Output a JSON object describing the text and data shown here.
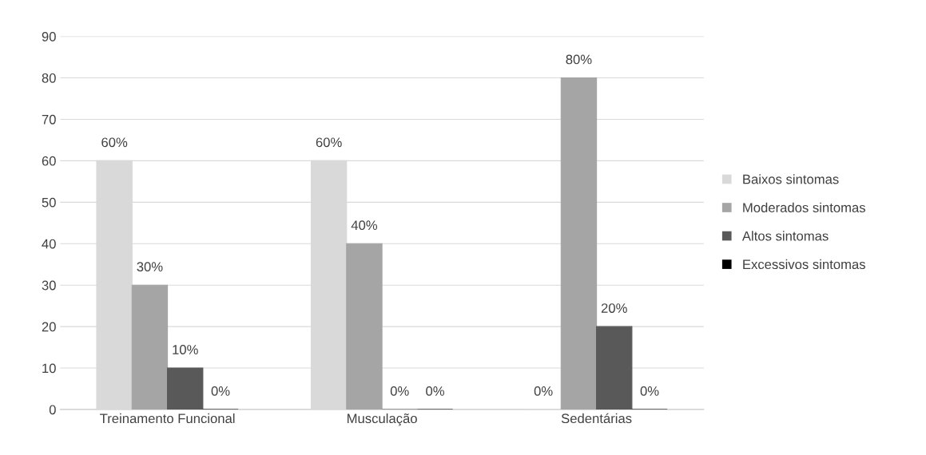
{
  "chart_data": {
    "type": "bar",
    "categories": [
      "Treinamento Funcional",
      "Musculação",
      "Sedentárias"
    ],
    "series": [
      {
        "name": "Baixos sintomas",
        "color": "#d9d9d9",
        "values": [
          60,
          60,
          0
        ],
        "value_labels": [
          "60%",
          "60%",
          "0%"
        ]
      },
      {
        "name": "Moderados sintomas",
        "color": "#a5a5a5",
        "values": [
          30,
          40,
          80
        ],
        "value_labels": [
          "30%",
          "40%",
          "80%"
        ]
      },
      {
        "name": "Altos sintomas",
        "color": "#595959",
        "values": [
          10,
          0,
          20
        ],
        "value_labels": [
          "10%",
          "0%",
          "20%"
        ]
      },
      {
        "name": "Excessivos sintomas",
        "color": "#000000",
        "values": [
          0,
          0,
          0
        ],
        "value_labels": [
          "0%",
          "0%",
          "0%"
        ]
      }
    ],
    "ylim": [
      0,
      90
    ],
    "yticks": [
      0,
      10,
      20,
      30,
      40,
      50,
      60,
      70,
      80,
      90
    ],
    "grid": "y",
    "legend": "right"
  }
}
